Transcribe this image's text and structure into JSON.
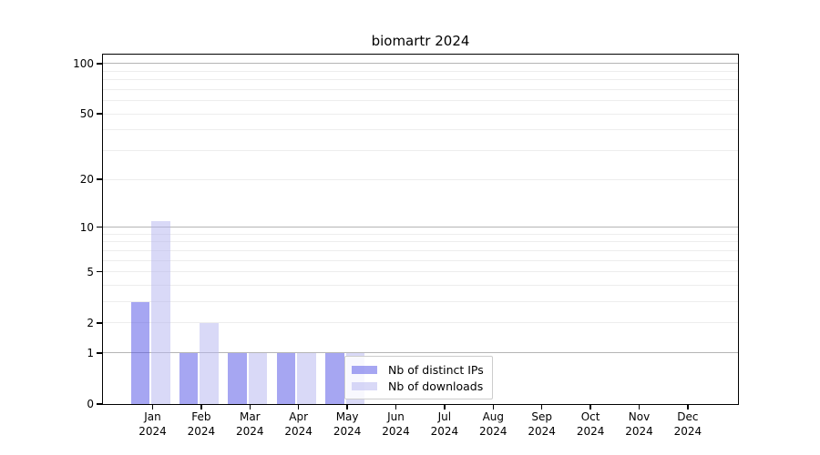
{
  "colors": {
    "background": "#ffffff",
    "axis": "#000000",
    "text": "#000000",
    "legend_border": "#cccccc"
  },
  "chart_data": {
    "type": "bar",
    "title": "biomartr 2024",
    "y_scale": "log1p",
    "ylabel": "",
    "xlabel": "",
    "y_ticks": [
      0,
      1,
      2,
      5,
      10,
      20,
      50,
      100
    ],
    "y_axis_top_value": 113,
    "gridlines": {
      "major_values": [
        1,
        10,
        100
      ],
      "minor_values": [
        2,
        3,
        4,
        5,
        6,
        7,
        8,
        9,
        20,
        30,
        40,
        50,
        60,
        70,
        80,
        90
      ],
      "major_color": "#b5b5b5",
      "minor_color": "#ededed"
    },
    "x_categories": [
      {
        "month": "Jan",
        "year": "2024"
      },
      {
        "month": "Feb",
        "year": "2024"
      },
      {
        "month": "Mar",
        "year": "2024"
      },
      {
        "month": "Apr",
        "year": "2024"
      },
      {
        "month": "May",
        "year": "2024"
      },
      {
        "month": "Jun",
        "year": "2024"
      },
      {
        "month": "Jul",
        "year": "2024"
      },
      {
        "month": "Aug",
        "year": "2024"
      },
      {
        "month": "Sep",
        "year": "2024"
      },
      {
        "month": "Oct",
        "year": "2024"
      },
      {
        "month": "Nov",
        "year": "2024"
      },
      {
        "month": "Dec",
        "year": "2024"
      }
    ],
    "series": [
      {
        "key": "distinct-ips",
        "name": "Nb of distinct IPs",
        "color_hex": "#4d4de6",
        "alpha": 0.5,
        "rendered_color": "#a6a6f2",
        "values": [
          3,
          1,
          1,
          1,
          1,
          0,
          0,
          0,
          0,
          0,
          0,
          0
        ]
      },
      {
        "key": "downloads",
        "name": "Nb of downloads",
        "color_hex": "#b3b3f0",
        "alpha": 0.5,
        "rendered_color": "#d9d9f7",
        "values": [
          11,
          2,
          1,
          1,
          1,
          0,
          0,
          0,
          0,
          0,
          0,
          0
        ]
      }
    ],
    "legend": {
      "position": "inside-bottom-center",
      "items": [
        "Nb of distinct IPs",
        "Nb of downloads"
      ]
    }
  }
}
